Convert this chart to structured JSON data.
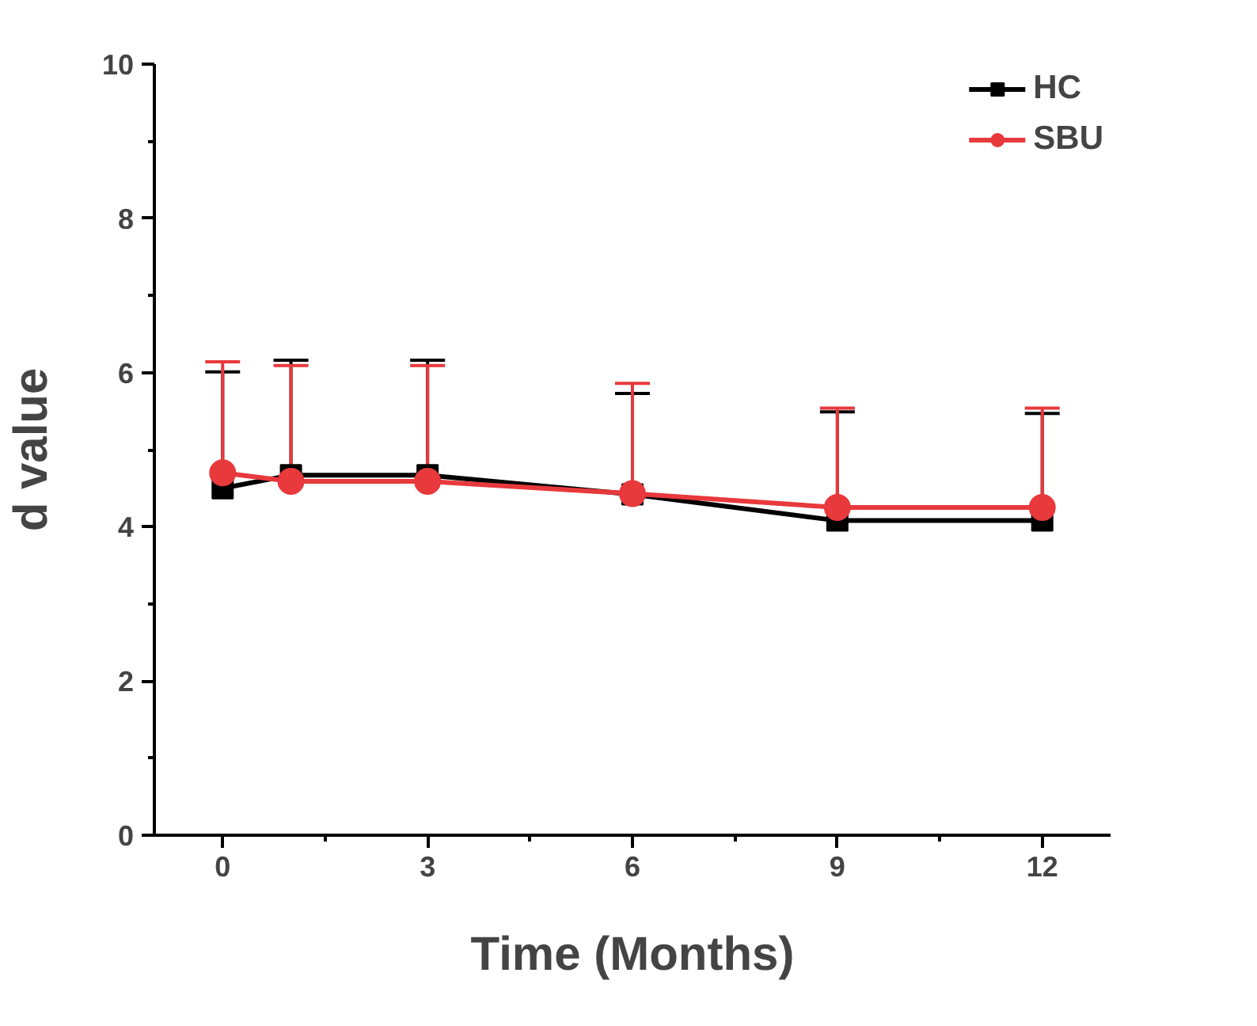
{
  "chart_data": {
    "type": "line",
    "xlabel": "Time (Months)",
    "ylabel": "d value",
    "xlim": [
      -1,
      13
    ],
    "xticks": [
      0,
      3,
      6,
      9,
      12
    ],
    "ylim": [
      0,
      10
    ],
    "yticks": [
      0,
      2,
      4,
      6,
      8,
      10
    ],
    "grid": false,
    "legend": "top right",
    "line_style": "solid",
    "series": [
      {
        "name": "HC",
        "color": "#000000",
        "marker": "square",
        "x": [
          0,
          1,
          3,
          6,
          9,
          12
        ],
        "values": [
          4.5,
          4.67,
          4.67,
          4.42,
          4.08,
          4.08
        ],
        "errors": [
          [
            4.5,
            6.01
          ],
          [
            4.67,
            6.16
          ],
          [
            4.67,
            6.16
          ],
          [
            4.42,
            5.73
          ],
          [
            4.08,
            5.49
          ],
          [
            4.08,
            5.47
          ]
        ]
      },
      {
        "name": "SBU",
        "color": "#e8393c",
        "marker": "circle",
        "x": [
          0,
          1,
          3,
          6,
          9,
          12
        ],
        "values": [
          4.7,
          4.59,
          4.59,
          4.43,
          4.25,
          4.25
        ],
        "errors": [
          [
            4.7,
            6.14
          ],
          [
            4.59,
            6.09
          ],
          [
            4.59,
            6.09
          ],
          [
            4.43,
            5.86
          ],
          [
            4.25,
            5.54
          ],
          [
            4.25,
            5.54
          ]
        ]
      }
    ]
  }
}
